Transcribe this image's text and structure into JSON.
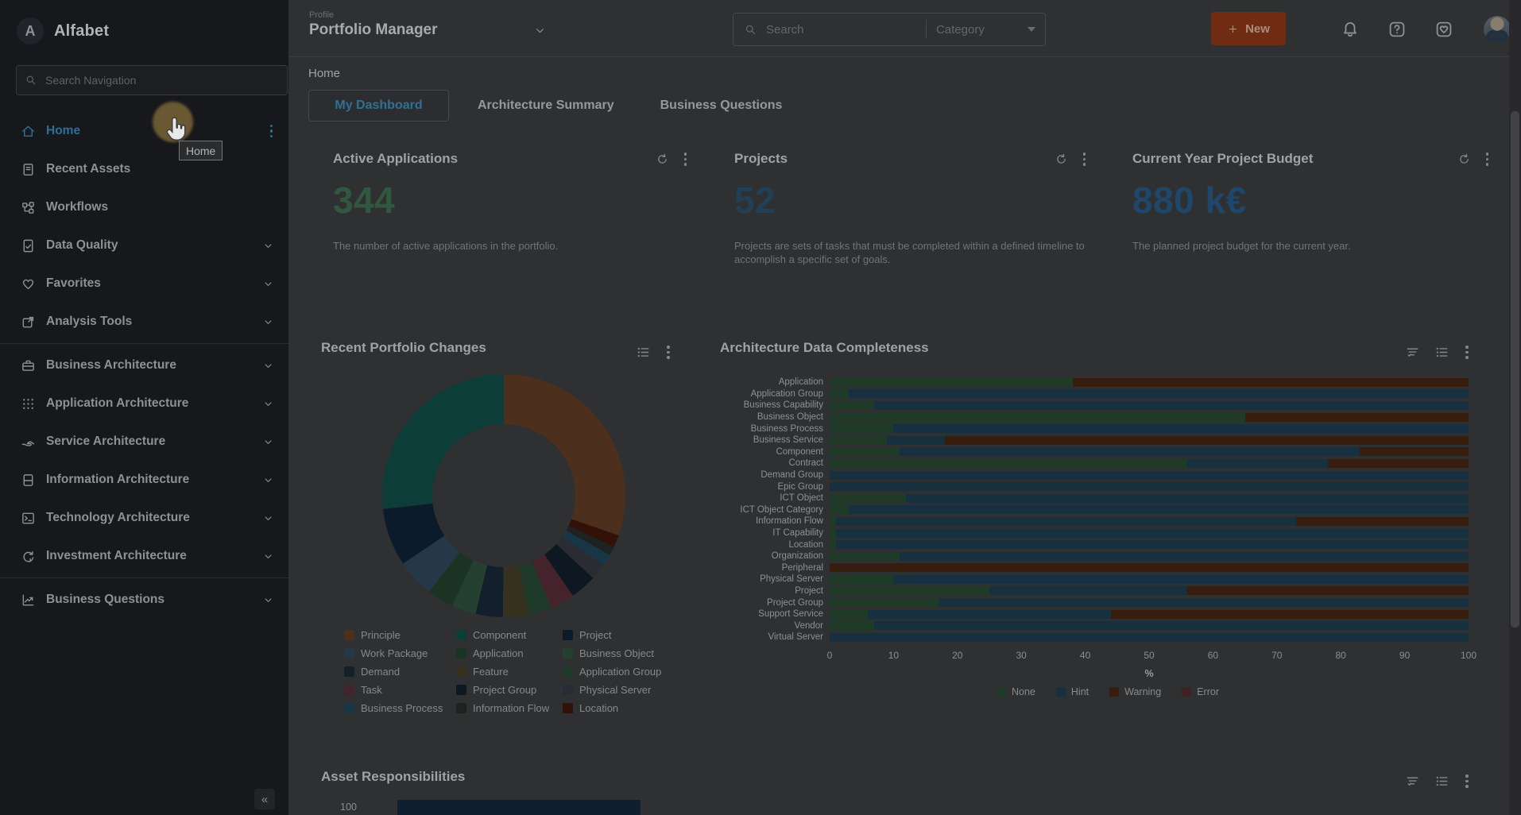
{
  "brand": {
    "name": "Alfabet",
    "logo_letter": "A"
  },
  "sidebar": {
    "search_placeholder": "Search Navigation",
    "collapse_label": "«",
    "items": [
      {
        "label": "Home",
        "icon": "home-icon",
        "active": true,
        "kebab": true
      },
      {
        "label": "Recent Assets",
        "icon": "recent-assets-icon"
      },
      {
        "label": "Workflows",
        "icon": "workflows-icon"
      },
      {
        "label": "Data Quality",
        "icon": "data-quality-icon",
        "chevron": true
      },
      {
        "label": "Favorites",
        "icon": "favorites-icon",
        "chevron": true
      },
      {
        "label": "Analysis Tools",
        "icon": "analysis-tools-icon",
        "chevron": true
      },
      {
        "label": "Business Architecture",
        "icon": "business-architecture-icon",
        "chevron": true,
        "divider_before": true
      },
      {
        "label": "Application Architecture",
        "icon": "application-architecture-icon",
        "chevron": true
      },
      {
        "label": "Service Architecture",
        "icon": "service-architecture-icon",
        "chevron": true
      },
      {
        "label": "Information Architecture",
        "icon": "information-architecture-icon",
        "chevron": true
      },
      {
        "label": "Technology Architecture",
        "icon": "technology-architecture-icon",
        "chevron": true
      },
      {
        "label": "Investment Architecture",
        "icon": "investment-architecture-icon",
        "chevron": true
      },
      {
        "label": "Business Questions",
        "icon": "business-questions-icon",
        "chevron": true,
        "divider_before": true
      }
    ]
  },
  "topbar": {
    "profile_label": "Profile",
    "profile_value": "Portfolio Manager",
    "search_placeholder": "Search",
    "category_label": "Category",
    "new_button_label": "New",
    "icon_names": [
      "bell-icon",
      "help-icon",
      "heart-box-icon"
    ]
  },
  "breadcrumb": "Home",
  "tabs": [
    {
      "label": "My Dashboard",
      "active": true
    },
    {
      "label": "Architecture Summary",
      "active": false
    },
    {
      "label": "Business Questions",
      "active": false
    }
  ],
  "tour": {
    "tooltip": "Home"
  },
  "kpis": [
    {
      "title": "Active Applications",
      "value": "344",
      "value_color": "#30583f",
      "description": "The number of active applications in the portfolio."
    },
    {
      "title": "Projects",
      "value": "52",
      "value_color": "#214058",
      "description": "Projects are sets of tasks that must be completed within a defined timeline to accomplish a specific set of goals."
    },
    {
      "title": "Current Year Project Budget",
      "value": "880 k€",
      "value_color": "#1f466b",
      "description": "The planned project budget for the current year."
    }
  ],
  "chart_data": [
    {
      "type": "pie",
      "subtype": "donut",
      "title": "Recent Portfolio Changes",
      "legend_position": "bottom",
      "slices": [
        {
          "label": "Principle",
          "value": 30.0,
          "color": "#4c2f1c"
        },
        {
          "label": "Component",
          "value": 26.5,
          "color": "#0d3d38"
        },
        {
          "label": "Project",
          "value": 7.6,
          "color": "#0c1b29"
        },
        {
          "label": "Work Package",
          "value": 5.0,
          "color": "#243847"
        },
        {
          "label": "Application",
          "value": 3.5,
          "color": "#1b3323"
        },
        {
          "label": "Business Object",
          "value": 3.2,
          "color": "#254031"
        },
        {
          "label": "Demand",
          "value": 3.6,
          "color": "#13202c"
        },
        {
          "label": "Feature",
          "value": 3.4,
          "color": "#37311f"
        },
        {
          "label": "Application Group",
          "value": 3.0,
          "color": "#1f3a29"
        },
        {
          "label": "Task",
          "value": 3.2,
          "color": "#45232c"
        },
        {
          "label": "Project Group",
          "value": 3.5,
          "color": "#0d1823"
        },
        {
          "label": "Physical Server",
          "value": 2.2,
          "color": "#2b2b33"
        },
        {
          "label": "Business Process",
          "value": 1.5,
          "color": "#173747"
        },
        {
          "label": "Information Flow",
          "value": 1.2,
          "color": "#1d2321"
        },
        {
          "label": "Location",
          "value": 1.6,
          "color": "#331109"
        }
      ],
      "draw_order": [
        0,
        14,
        13,
        12,
        11,
        10,
        9,
        8,
        7,
        6,
        5,
        4,
        3,
        2,
        1
      ]
    },
    {
      "type": "bar",
      "subtype": "horizontal-stacked",
      "title": "Architecture Data Completeness",
      "xlabel": "%",
      "xlim": [
        0,
        100
      ],
      "xticks": [
        0,
        10,
        20,
        30,
        40,
        50,
        60,
        70,
        80,
        90,
        100
      ],
      "legend_position": "bottom",
      "series": [
        {
          "name": "None",
          "color": "#1f3b27"
        },
        {
          "name": "Hint",
          "color": "#16303f"
        },
        {
          "name": "Warning",
          "color": "#371d0e"
        },
        {
          "name": "Error",
          "color": "#3f2023"
        }
      ],
      "categories": [
        "Application",
        "Application Group",
        "Business Capability",
        "Business Object",
        "Business Process",
        "Business Service",
        "Component",
        "Contract",
        "Demand Group",
        "Epic Group",
        "ICT Object",
        "ICT Object Category",
        "Information Flow",
        "IT Capability",
        "Location",
        "Organization",
        "Peripheral",
        "Physical Server",
        "Project",
        "Project Group",
        "Support Service",
        "Vendor",
        "Virtual Server"
      ],
      "values": [
        [
          38,
          0,
          62,
          0
        ],
        [
          3,
          97,
          0,
          0
        ],
        [
          7,
          93,
          0,
          0
        ],
        [
          65,
          0,
          35,
          0
        ],
        [
          10,
          90,
          0,
          0
        ],
        [
          9,
          9,
          82,
          0
        ],
        [
          11,
          72,
          17,
          0
        ],
        [
          56,
          22,
          22,
          0
        ],
        [
          0,
          100,
          0,
          0
        ],
        [
          0,
          100,
          0,
          0
        ],
        [
          12,
          88,
          0,
          0
        ],
        [
          3,
          97,
          0,
          0
        ],
        [
          1,
          72,
          27,
          0
        ],
        [
          1,
          99,
          0,
          0
        ],
        [
          1,
          99,
          0,
          0
        ],
        [
          11,
          89,
          0,
          0
        ],
        [
          0,
          0,
          100,
          0
        ],
        [
          10,
          90,
          0,
          0
        ],
        [
          25,
          31,
          44,
          0
        ],
        [
          17,
          83,
          0,
          0
        ],
        [
          6,
          38,
          56,
          0
        ],
        [
          7,
          93,
          0,
          0
        ],
        [
          0,
          100,
          0,
          0
        ]
      ]
    },
    {
      "type": "bar",
      "title": "Asset Responsibilities",
      "visible_ytick": "100",
      "first_bar_color": "#0f1f30",
      "note": "partially visible at bottom of viewport"
    }
  ]
}
